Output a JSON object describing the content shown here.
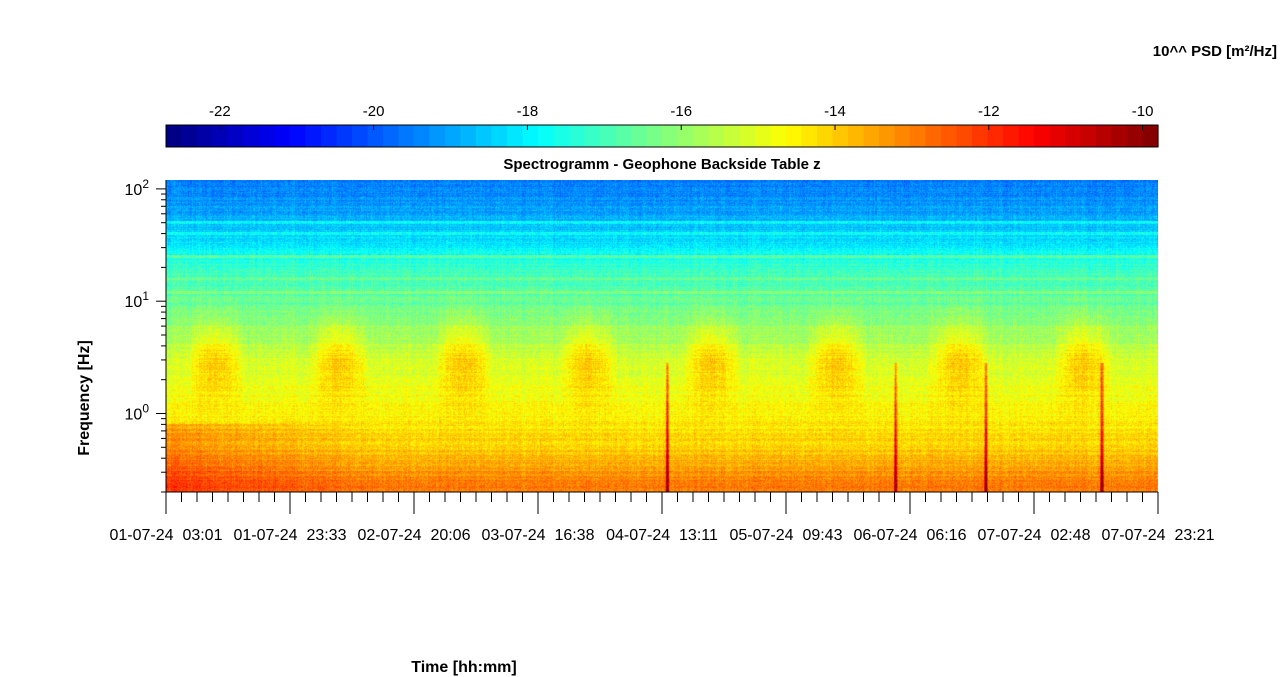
{
  "chart_data": {
    "type": "heatmap",
    "title": "Spectrogramm - Geophone Backside Table z",
    "xlabel": "Time [hh:mm]",
    "ylabel": "Frequency [Hz]",
    "y_scale": "log",
    "ylim_hz": [
      0.2,
      120
    ],
    "y_ticks": [
      {
        "value": 1,
        "base": "10",
        "exp": "0"
      },
      {
        "value": 10,
        "base": "10",
        "exp": "1"
      },
      {
        "value": 100,
        "base": "10",
        "exp": "2"
      }
    ],
    "x_tick_labels": [
      "01-07-24  03:01",
      "01-07-24  23:33",
      "02-07-24  20:06",
      "03-07-24  16:38",
      "04-07-24  13:11",
      "05-07-24  09:43",
      "06-07-24  06:16",
      "07-07-24  02:48",
      "07-07-24  23:21"
    ],
    "colorbar": {
      "label": "10^^ PSD [m²/Hz]",
      "range": [
        -22.7,
        -9.8
      ],
      "tick_values": [
        -22,
        -20,
        -18,
        -16,
        -14,
        -12,
        -10
      ],
      "tick_labels": [
        "-22",
        "-20",
        "-18",
        "-16",
        "-14",
        "-12",
        "-10"
      ],
      "colormap": "jet"
    },
    "transient_events_time_fraction": [
      0.505,
      0.735,
      0.826,
      0.943
    ],
    "log10_psd_profile": [
      {
        "freq_hz": 120,
        "value": -19.6
      },
      {
        "freq_hz": 60,
        "value": -19.0
      },
      {
        "freq_hz": 30,
        "value": -18.0
      },
      {
        "freq_hz": 20,
        "value": -17.2
      },
      {
        "freq_hz": 10,
        "value": -16.6
      },
      {
        "freq_hz": 3,
        "value": -15.2
      },
      {
        "freq_hz": 1,
        "value": -14.6
      },
      {
        "freq_hz": 0.5,
        "value": -14.0
      },
      {
        "freq_hz": 0.2,
        "value": -12.8
      }
    ]
  }
}
